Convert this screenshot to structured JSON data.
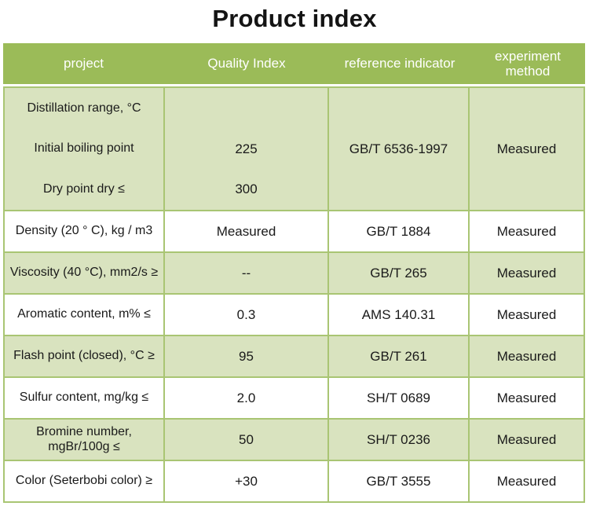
{
  "title": "Product index",
  "colors": {
    "header_bg": "#9bbb58",
    "alt_row_bg": "#d9e3bf",
    "grid_border": "#a9c573",
    "header_text": "#ffffff",
    "body_text": "#1a1a1a"
  },
  "table": {
    "headers": [
      "project",
      "Quality Index",
      "reference indicator",
      "experiment method"
    ],
    "merged_row": {
      "project_lines": [
        "Distillation range, °C",
        "Initial boiling point",
        "Dry point dry ≤"
      ],
      "quality_lines": [
        "",
        "225",
        "300"
      ],
      "reference": "GB/T 6536-1997",
      "method": "Measured"
    },
    "rows": [
      {
        "project": "Density (20 ° C), kg / m3",
        "quality": "Measured",
        "reference": "GB/T 1884",
        "method": "Measured"
      },
      {
        "project": "Viscosity (40 °C), mm2/s ≥",
        "quality": "--",
        "reference": "GB/T 265",
        "method": "Measured"
      },
      {
        "project": "Aromatic content, m% ≤",
        "quality": "0.3",
        "reference": "AMS 140.31",
        "method": "Measured"
      },
      {
        "project": "Flash point (closed), °C ≥",
        "quality": "95",
        "reference": "GB/T 261",
        "method": "Measured"
      },
      {
        "project": "Sulfur content, mg/kg ≤",
        "quality": "2.0",
        "reference": "SH/T 0689",
        "method": "Measured"
      },
      {
        "project": "Bromine number, mgBr/100g ≤",
        "quality": "50",
        "reference": "SH/T 0236",
        "method": "Measured"
      },
      {
        "project": "Color (Seterbobi color) ≥",
        "quality": "+30",
        "reference": "GB/T 3555",
        "method": "Measured"
      }
    ]
  }
}
